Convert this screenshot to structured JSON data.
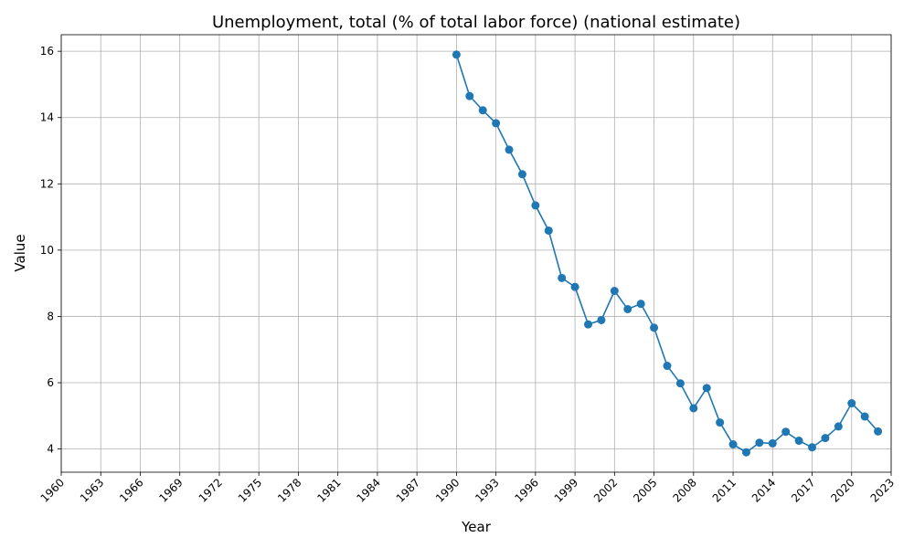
{
  "chart_data": {
    "type": "line",
    "title": "Unemployment, total (% of total labor force) (national estimate)",
    "xlabel": "Year",
    "ylabel": "Value",
    "xlim": [
      1960,
      2023
    ],
    "ylim": [
      3.3,
      16.5
    ],
    "x_ticks": [
      1960,
      1963,
      1966,
      1969,
      1972,
      1975,
      1978,
      1981,
      1984,
      1987,
      1990,
      1993,
      1996,
      1999,
      2002,
      2005,
      2008,
      2011,
      2014,
      2017,
      2020,
      2023
    ],
    "y_ticks": [
      4,
      6,
      8,
      10,
      12,
      14,
      16
    ],
    "grid": true,
    "series": [
      {
        "color": "#1f77b4",
        "marker": "circle",
        "x": [
          1990,
          1991,
          1992,
          1993,
          1994,
          1995,
          1996,
          1997,
          1998,
          1999,
          2000,
          2001,
          2002,
          2003,
          2004,
          2005,
          2006,
          2007,
          2008,
          2009,
          2010,
          2011,
          2012,
          2013,
          2014,
          2015,
          2016,
          2017,
          2018,
          2019,
          2020,
          2021,
          2022
        ],
        "y": [
          15.9,
          14.65,
          14.22,
          13.83,
          13.03,
          12.29,
          11.35,
          10.59,
          9.16,
          8.89,
          7.76,
          7.89,
          8.77,
          8.22,
          8.38,
          7.66,
          6.51,
          5.98,
          5.23,
          5.84,
          4.8,
          4.14,
          3.9,
          4.19,
          4.17,
          4.52,
          4.25,
          4.05,
          4.33,
          4.68,
          5.38,
          4.98,
          4.53
        ]
      }
    ]
  }
}
